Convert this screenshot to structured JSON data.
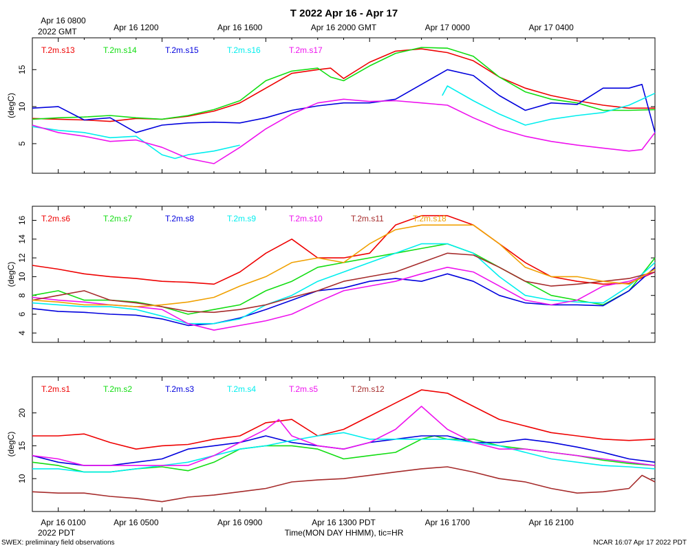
{
  "title": "T 2022 Apr 16 - Apr 17",
  "top_axis": {
    "year_label": "2022 GMT",
    "tick_labels": [
      "Apr 16 0800",
      "Apr 16 1200",
      "Apr 16 1600",
      "Apr 16 2000 GMT",
      "Apr 17 0000",
      "Apr 17 0400"
    ]
  },
  "bottom_axis": {
    "year_label": "2022 PDT",
    "tick_labels": [
      "Apr 16 0100",
      "Apr 16 0500",
      "Apr 16 0900",
      "Apr 16 1300 PDT",
      "Apr 16 1700",
      "Apr 16 2100"
    ],
    "xlabel": "Time(MON DAY HHMM), tic=HR"
  },
  "footer": {
    "left": "SWEX: preliminary field observations",
    "right": "NCAR 16:07 Apr 17 2022 PDT"
  },
  "colors": {
    "red": "#ee0000",
    "green": "#11dd11",
    "blue": "#0000dd",
    "cyan": "#00eeee",
    "magenta": "#ee11ee",
    "brown": "#a52a2a",
    "orange": "#f0a000"
  },
  "chart_data": [
    {
      "type": "line",
      "ylabel": "(degC)",
      "xlim": [
        0.0,
        24.0
      ],
      "ylim": [
        1.0,
        19.3
      ],
      "yticks": [
        5,
        10,
        15
      ],
      "legend_placement": "top-left",
      "series": [
        {
          "name": "T.2m.s13",
          "color": "#ee0000",
          "x": [
            0,
            1,
            2,
            3,
            4,
            5,
            6,
            7,
            8,
            9,
            10,
            11,
            11.5,
            12,
            13,
            14,
            15,
            16,
            17,
            18,
            19,
            20,
            21,
            22,
            23,
            24
          ],
          "y": [
            8.4,
            8.3,
            8.2,
            8.0,
            8.4,
            8.3,
            8.7,
            9.4,
            10.5,
            12.5,
            14.5,
            15.0,
            15.2,
            13.8,
            16.0,
            17.5,
            17.8,
            17.3,
            16.2,
            14.0,
            12.5,
            11.5,
            10.8,
            10.2,
            9.8,
            9.8
          ]
        },
        {
          "name": "T.2m.s14",
          "color": "#11dd11",
          "x": [
            0,
            1,
            2,
            3,
            4,
            5,
            6,
            7,
            8,
            9,
            10,
            11,
            11.5,
            12,
            13,
            14,
            15,
            16,
            17,
            18,
            19,
            20,
            21,
            22,
            23,
            24
          ],
          "y": [
            8.3,
            8.5,
            8.6,
            8.8,
            8.5,
            8.3,
            8.8,
            9.6,
            10.8,
            13.5,
            14.8,
            15.2,
            14.0,
            13.5,
            15.5,
            17.2,
            18.0,
            17.9,
            16.8,
            14.0,
            12.0,
            11.0,
            10.5,
            9.5,
            9.5,
            9.6
          ]
        },
        {
          "name": "T.2m.s15",
          "color": "#0000dd",
          "x": [
            0,
            1,
            2,
            3,
            4,
            5,
            6,
            7,
            8,
            9,
            10,
            11,
            12,
            13,
            14,
            15,
            16,
            17,
            18,
            19,
            20,
            21,
            22,
            23,
            23.5,
            24
          ],
          "y": [
            9.8,
            10.0,
            8.2,
            8.5,
            6.5,
            7.5,
            7.8,
            7.9,
            7.8,
            8.5,
            9.5,
            10.1,
            10.5,
            10.5,
            11.0,
            13.0,
            15.0,
            14.2,
            11.5,
            9.5,
            10.5,
            10.3,
            12.5,
            12.5,
            13.0,
            6.5
          ]
        },
        {
          "name": "T.2m.s16",
          "color": "#00eeee",
          "x": [
            15.8,
            16,
            17,
            18,
            19,
            20,
            21,
            22,
            23,
            24
          ],
          "y": [
            11.5,
            12.8,
            10.8,
            9.0,
            7.5,
            8.3,
            8.8,
            9.2,
            10.2,
            11.8
          ]
        },
        {
          "name": "T.2m.s16",
          "color": "#00eeee",
          "x": [
            0,
            1,
            2,
            3,
            4,
            5,
            5.5,
            6,
            7,
            8
          ],
          "y": [
            7.3,
            6.8,
            6.5,
            5.8,
            6.0,
            3.5,
            3.0,
            3.5,
            4.0,
            4.8
          ]
        },
        {
          "name": "T.2m.s17",
          "color": "#ee11ee",
          "x": [
            0,
            1,
            2,
            3,
            4,
            5,
            6,
            7,
            8,
            9,
            10,
            11,
            12,
            13,
            14,
            15,
            16,
            17,
            18,
            19,
            20,
            21,
            22,
            23,
            23.5,
            24
          ],
          "y": [
            7.5,
            6.5,
            6.0,
            5.3,
            5.5,
            4.5,
            3.0,
            2.3,
            4.5,
            7.0,
            9.0,
            10.5,
            11.0,
            10.7,
            10.8,
            10.5,
            10.2,
            8.5,
            7.0,
            6.0,
            5.3,
            4.8,
            4.4,
            4.0,
            4.2,
            6.5
          ]
        }
      ]
    },
    {
      "type": "line",
      "ylabel": "(degC)",
      "xlim": [
        0.0,
        24.0
      ],
      "ylim": [
        3.0,
        17.5
      ],
      "yticks": [
        4,
        6,
        8,
        10,
        12,
        14,
        16
      ],
      "legend_placement": "top-left",
      "series": [
        {
          "name": "T.2m.s6",
          "color": "#ee0000",
          "x": [
            0,
            1,
            2,
            3,
            4,
            5,
            6,
            7,
            8,
            9,
            10,
            11,
            12,
            13,
            14,
            15,
            16,
            17,
            18,
            19,
            20,
            21,
            22,
            23,
            24
          ],
          "y": [
            11.2,
            10.8,
            10.3,
            10.0,
            9.8,
            9.5,
            9.4,
            9.2,
            10.5,
            12.5,
            14.0,
            12.0,
            12.0,
            12.5,
            15.5,
            16.5,
            16.5,
            15.5,
            13.5,
            11.5,
            10.0,
            9.5,
            9.2,
            9.3,
            10.5
          ]
        },
        {
          "name": "T.2m.s7",
          "color": "#11dd11",
          "x": [
            0,
            1,
            2,
            3,
            4,
            5,
            6,
            7,
            8,
            9,
            10,
            11,
            12,
            13,
            14,
            15,
            16,
            17,
            18,
            19,
            20,
            21,
            22,
            23,
            24
          ],
          "y": [
            8.0,
            8.5,
            7.5,
            7.5,
            7.3,
            6.8,
            6.0,
            6.5,
            7.0,
            8.5,
            9.5,
            11.0,
            11.5,
            12.0,
            12.5,
            13.0,
            13.5,
            12.5,
            11.0,
            9.5,
            8.0,
            7.5,
            7.0,
            8.5,
            12.0
          ]
        },
        {
          "name": "T.2m.s8",
          "color": "#0000dd",
          "x": [
            0,
            1,
            2,
            3,
            4,
            5,
            6,
            7,
            8,
            9,
            10,
            11,
            12,
            13,
            14,
            15,
            16,
            17,
            18,
            19,
            20,
            21,
            22,
            23,
            24
          ],
          "y": [
            6.6,
            6.3,
            6.2,
            6.0,
            5.9,
            5.5,
            4.8,
            5.0,
            5.6,
            6.5,
            7.5,
            8.5,
            8.8,
            9.5,
            9.8,
            9.5,
            10.3,
            9.5,
            8.0,
            7.2,
            7.0,
            7.0,
            6.9,
            8.5,
            11.0
          ]
        },
        {
          "name": "T.2m.s9",
          "color": "#00eeee",
          "x": [
            0,
            1,
            2,
            3,
            4,
            5,
            6,
            7,
            8,
            9,
            10,
            11,
            12,
            13,
            14,
            15,
            16,
            17,
            18,
            19,
            20,
            21,
            22,
            23,
            24
          ],
          "y": [
            7.2,
            7.0,
            6.8,
            6.8,
            6.5,
            5.8,
            5.0,
            5.0,
            5.5,
            7.0,
            8.0,
            9.5,
            10.5,
            11.5,
            12.5,
            13.5,
            13.5,
            12.5,
            10.0,
            8.0,
            7.5,
            7.3,
            7.2,
            9.0,
            11.5
          ]
        },
        {
          "name": "T.2m.s10",
          "color": "#ee11ee",
          "x": [
            0,
            1,
            2,
            3,
            4,
            5,
            6,
            7,
            8,
            9,
            10,
            11,
            12,
            13,
            14,
            15,
            16,
            17,
            18,
            19,
            20,
            21,
            22,
            23,
            24
          ],
          "y": [
            7.8,
            7.5,
            7.3,
            7.0,
            6.8,
            6.5,
            5.0,
            4.3,
            4.8,
            5.3,
            6.0,
            7.3,
            8.5,
            9.0,
            9.5,
            10.3,
            11.0,
            10.5,
            9.0,
            7.5,
            7.0,
            7.5,
            9.0,
            9.5,
            10.5
          ]
        },
        {
          "name": "T.2m.s11",
          "color": "#a52a2a",
          "x": [
            0,
            1,
            2,
            3,
            4,
            5,
            6,
            7,
            8,
            9,
            10,
            11,
            12,
            13,
            14,
            15,
            16,
            17,
            18,
            19,
            20,
            21,
            22,
            23,
            24
          ],
          "y": [
            7.5,
            8.0,
            8.5,
            7.5,
            7.2,
            6.8,
            6.3,
            6.2,
            6.5,
            7.0,
            7.8,
            8.5,
            9.5,
            10.0,
            10.5,
            11.5,
            12.5,
            12.3,
            11.0,
            9.5,
            9.0,
            9.2,
            9.5,
            9.8,
            10.5
          ]
        },
        {
          "name": "T.2m.s18",
          "color": "#f0a000",
          "x": [
            0,
            1,
            2,
            3,
            4,
            5,
            6,
            7,
            8,
            9,
            10,
            11,
            12,
            13,
            14,
            15,
            16,
            17,
            18,
            19,
            20,
            21,
            22,
            23,
            24
          ],
          "y": [
            7.5,
            7.3,
            7.0,
            7.0,
            6.8,
            7.0,
            7.3,
            7.8,
            9.0,
            10.0,
            11.5,
            12.0,
            11.5,
            13.5,
            15.0,
            15.5,
            15.5,
            15.5,
            13.5,
            11.0,
            10.0,
            10.0,
            9.5,
            9.2,
            10.8
          ]
        }
      ]
    },
    {
      "type": "line",
      "ylabel": "(degC)",
      "xlim": [
        0.0,
        24.0
      ],
      "ylim": [
        5.0,
        25.5
      ],
      "yticks": [
        10,
        15,
        20
      ],
      "legend_placement": "top-left",
      "series": [
        {
          "name": "T.2m.s1",
          "color": "#ee0000",
          "x": [
            0,
            1,
            2,
            3,
            4,
            5,
            6,
            7,
            8,
            9,
            10,
            11,
            12,
            13,
            14,
            15,
            16,
            17,
            18,
            19,
            20,
            21,
            22,
            23,
            24
          ],
          "y": [
            16.5,
            16.5,
            16.8,
            15.5,
            14.5,
            15.0,
            15.2,
            16.0,
            16.5,
            18.5,
            19.0,
            16.5,
            17.5,
            19.5,
            21.5,
            23.5,
            23.0,
            21.0,
            19.0,
            18.0,
            17.0,
            16.5,
            16.0,
            15.8,
            16.0
          ]
        },
        {
          "name": "T.2m.s2",
          "color": "#11dd11",
          "x": [
            0,
            1,
            2,
            3,
            4,
            5,
            6,
            7,
            8,
            9,
            10,
            11,
            12,
            13,
            14,
            15,
            15.5,
            16,
            17,
            18,
            19,
            20,
            21,
            22,
            23,
            24
          ],
          "y": [
            12.5,
            12.0,
            11.0,
            11.0,
            11.5,
            11.8,
            11.2,
            12.5,
            14.5,
            15.0,
            15.0,
            14.5,
            13.0,
            13.5,
            14.0,
            16.0,
            16.5,
            16.0,
            16.0,
            15.0,
            14.5,
            14.0,
            13.5,
            12.8,
            12.3,
            12.0
          ]
        },
        {
          "name": "T.2m.s3",
          "color": "#0000dd",
          "x": [
            0,
            1,
            2,
            3,
            4,
            5,
            6,
            7,
            8,
            9,
            10,
            11,
            12,
            13,
            14,
            15,
            16,
            17,
            18,
            19,
            20,
            21,
            22,
            23,
            24
          ],
          "y": [
            13.5,
            12.5,
            12.0,
            12.0,
            12.5,
            13.0,
            14.5,
            15.0,
            15.5,
            16.5,
            15.5,
            15.0,
            14.5,
            15.5,
            16.0,
            16.5,
            16.5,
            15.5,
            15.5,
            16.0,
            15.5,
            14.8,
            14.0,
            13.0,
            12.5
          ]
        },
        {
          "name": "T.2m.s4",
          "color": "#00eeee",
          "x": [
            0,
            1,
            2,
            3,
            4,
            5,
            6,
            7,
            8,
            9,
            10,
            11,
            12,
            13,
            14,
            15,
            16,
            17,
            18,
            19,
            20,
            21,
            22,
            23,
            24
          ],
          "y": [
            11.5,
            11.5,
            11.0,
            11.0,
            11.5,
            12.0,
            12.5,
            13.5,
            14.5,
            15.0,
            15.8,
            16.5,
            17.0,
            16.0,
            16.0,
            16.0,
            16.0,
            15.5,
            15.0,
            14.0,
            13.0,
            12.5,
            12.0,
            11.8,
            11.5
          ]
        },
        {
          "name": "T.2m.s5",
          "color": "#ee11ee",
          "x": [
            0,
            1,
            2,
            3,
            4,
            5,
            6,
            7,
            8,
            9,
            9.5,
            10,
            11,
            12,
            13,
            14,
            15,
            16,
            17,
            18,
            19,
            20,
            21,
            22,
            23,
            24
          ],
          "y": [
            13.5,
            13.0,
            12.0,
            12.0,
            12.0,
            12.0,
            12.0,
            13.5,
            15.5,
            17.5,
            19.0,
            16.5,
            15.0,
            14.5,
            15.5,
            17.5,
            21.0,
            17.5,
            15.5,
            14.5,
            14.5,
            14.0,
            13.5,
            13.0,
            12.5,
            12.0
          ]
        },
        {
          "name": "T.2m.s12",
          "color": "#a52a2a",
          "x": [
            0,
            1,
            2,
            3,
            4,
            5,
            6,
            7,
            8,
            9,
            10,
            11,
            12,
            13,
            14,
            15,
            16,
            17,
            18,
            19,
            20,
            21,
            22,
            23,
            23.5,
            24
          ],
          "y": [
            8.0,
            7.8,
            7.8,
            7.3,
            7.0,
            6.5,
            7.2,
            7.5,
            8.0,
            8.5,
            9.5,
            9.8,
            10.0,
            10.5,
            11.0,
            11.5,
            11.8,
            11.0,
            10.0,
            9.5,
            8.5,
            7.8,
            8.0,
            8.5,
            10.5,
            9.5
          ]
        }
      ]
    }
  ]
}
